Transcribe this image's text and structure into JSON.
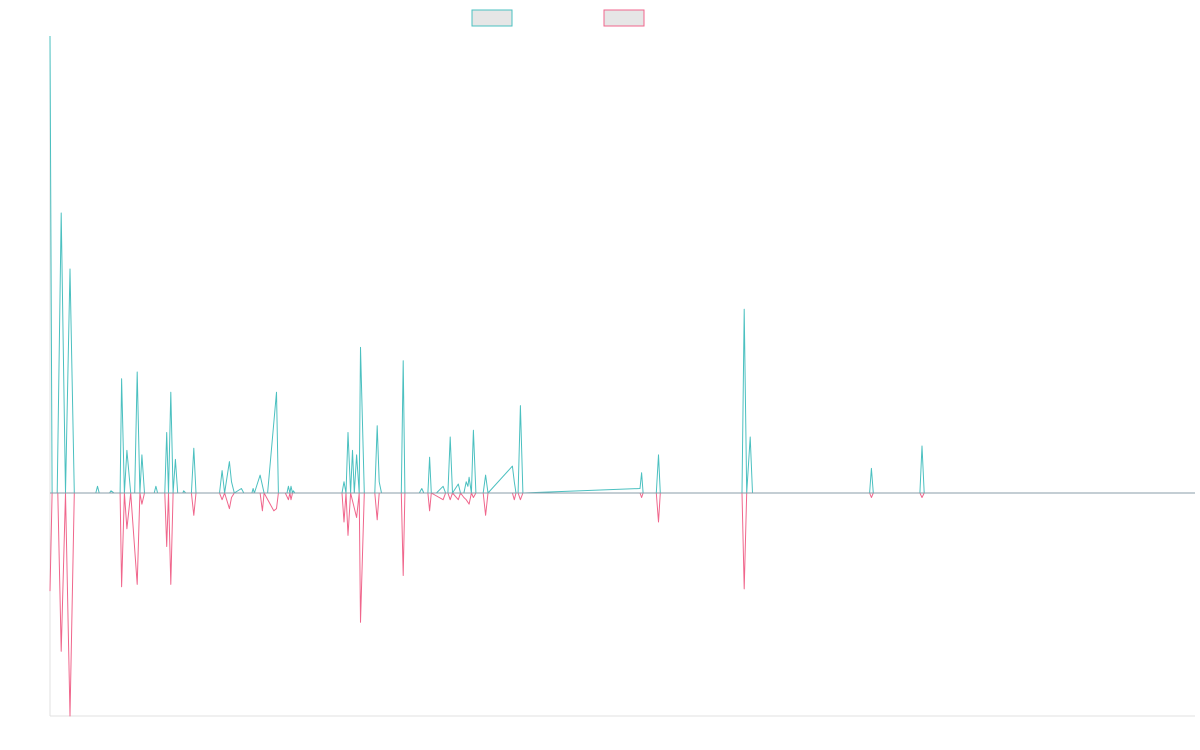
{
  "chart_data": {
    "type": "line",
    "title": "",
    "xlabel": "",
    "ylabel": "",
    "grid": false,
    "legend": "top-center",
    "x_range": [
      0,
      1
    ],
    "ylim": [
      -1,
      2.04
    ],
    "series": [
      {
        "color": "#4bc0c0",
        "points": [
          [
            0,
            2.04
          ],
          [
            0.0018,
            0
          ],
          [
            0.0063,
            0
          ],
          [
            0.0098,
            1.25
          ],
          [
            0.0135,
            0
          ],
          [
            0.0175,
            1.0
          ],
          [
            0.0212,
            0
          ],
          [
            0.04,
            0
          ],
          [
            0.0415,
            0.03
          ],
          [
            0.043,
            0
          ],
          [
            0.052,
            0
          ],
          [
            0.0533,
            0.01
          ],
          [
            0.056,
            0
          ],
          [
            0.0612,
            0
          ],
          [
            0.0625,
            0.51
          ],
          [
            0.065,
            0
          ],
          [
            0.0672,
            0.19
          ],
          [
            0.0705,
            0
          ],
          [
            0.074,
            0
          ],
          [
            0.0762,
            0.54
          ],
          [
            0.0785,
            0
          ],
          [
            0.0803,
            0.17
          ],
          [
            0.0825,
            0
          ],
          [
            0.091,
            0
          ],
          [
            0.0925,
            0.03
          ],
          [
            0.094,
            0
          ],
          [
            0.1003,
            0
          ],
          [
            0.1019,
            0.27
          ],
          [
            0.1035,
            0
          ],
          [
            0.1055,
            0.45
          ],
          [
            0.1075,
            0
          ],
          [
            0.1095,
            0.15
          ],
          [
            0.1115,
            0
          ],
          [
            0.116,
            0
          ],
          [
            0.1168,
            0.01
          ],
          [
            0.1185,
            0
          ],
          [
            0.1235,
            0
          ],
          [
            0.1256,
            0.2
          ],
          [
            0.1275,
            0
          ],
          [
            0.148,
            0
          ],
          [
            0.1503,
            0.1
          ],
          [
            0.1525,
            0
          ],
          [
            0.1567,
            0.14
          ],
          [
            0.1585,
            0.05
          ],
          [
            0.161,
            0
          ],
          [
            0.1672,
            0.02
          ],
          [
            0.1693,
            0
          ],
          [
            0.1763,
            0
          ],
          [
            0.1774,
            0.02
          ],
          [
            0.1785,
            0
          ],
          [
            0.1835,
            0.08
          ],
          [
            0.187,
            0
          ],
          [
            0.19,
            0
          ],
          [
            0.1978,
            0.45
          ],
          [
            0.1995,
            0
          ],
          [
            0.207,
            0
          ],
          [
            0.2082,
            0.03
          ],
          [
            0.2095,
            0
          ],
          [
            0.2105,
            0.03
          ],
          [
            0.2118,
            0
          ],
          [
            0.2125,
            0.01
          ],
          [
            0.214,
            0
          ],
          [
            0.255,
            0
          ],
          [
            0.2568,
            0.05
          ],
          [
            0.2585,
            0
          ],
          [
            0.2603,
            0.27
          ],
          [
            0.2625,
            0
          ],
          [
            0.2642,
            0.19
          ],
          [
            0.2658,
            0
          ],
          [
            0.2678,
            0.17
          ],
          [
            0.27,
            0
          ],
          [
            0.2712,
            0.65
          ],
          [
            0.2745,
            0
          ],
          [
            0.2837,
            0
          ],
          [
            0.2858,
            0.3
          ],
          [
            0.2875,
            0.05
          ],
          [
            0.2895,
            0
          ],
          [
            0.3,
            0
          ],
          [
            0.302,
            0
          ],
          [
            0.3068,
            0
          ],
          [
            0.3085,
            0.59
          ],
          [
            0.31,
            0
          ],
          [
            0.318,
            0
          ],
          [
            0.32,
            0
          ],
          [
            0.3225,
            0
          ],
          [
            0.3247,
            0.02
          ],
          [
            0.3265,
            0
          ],
          [
            0.33,
            0
          ],
          [
            0.3315,
            0.16
          ],
          [
            0.333,
            0
          ],
          [
            0.3355,
            0
          ],
          [
            0.3375,
            0
          ],
          [
            0.3433,
            0.03
          ],
          [
            0.3455,
            0
          ],
          [
            0.3475,
            0
          ],
          [
            0.3495,
            0.25
          ],
          [
            0.3515,
            0
          ],
          [
            0.3566,
            0.04
          ],
          [
            0.3585,
            0
          ],
          [
            0.3615,
            0
          ],
          [
            0.3635,
            0.05
          ],
          [
            0.365,
            0.03
          ],
          [
            0.366,
            0.07
          ],
          [
            0.368,
            0
          ],
          [
            0.3698,
            0.28
          ],
          [
            0.372,
            0
          ],
          [
            0.3783,
            0
          ],
          [
            0.3804,
            0.08
          ],
          [
            0.3825,
            0
          ],
          [
            0.4038,
            0.12
          ],
          [
            0.4055,
            0.05
          ],
          [
            0.407,
            0
          ],
          [
            0.4088,
            0
          ],
          [
            0.4108,
            0.39
          ],
          [
            0.413,
            0
          ],
          [
            0.5153,
            0.02
          ],
          [
            0.5167,
            0.09
          ],
          [
            0.518,
            0
          ],
          [
            0.5295,
            0
          ],
          [
            0.5314,
            0.17
          ],
          [
            0.533,
            0
          ],
          [
            0.5525,
            0
          ],
          [
            0.5545,
            0
          ],
          [
            0.6044,
            0
          ],
          [
            0.6063,
            0.82
          ],
          [
            0.6085,
            0
          ],
          [
            0.6115,
            0.25
          ],
          [
            0.6135,
            0
          ],
          [
            0.7158,
            0
          ],
          [
            0.7174,
            0.11
          ],
          [
            0.719,
            0
          ],
          [
            0.7597,
            0
          ],
          [
            0.7616,
            0.21
          ],
          [
            0.7635,
            0
          ],
          [
            1,
            0
          ]
        ]
      },
      {
        "color": "#f0668c",
        "points": [
          [
            0,
            -0.44
          ],
          [
            0.0018,
            0
          ],
          [
            0.0068,
            0
          ],
          [
            0.0098,
            -0.71
          ],
          [
            0.0135,
            0
          ],
          [
            0.0175,
            -1.0
          ],
          [
            0.0212,
            0
          ],
          [
            0.0612,
            0
          ],
          [
            0.0625,
            -0.42
          ],
          [
            0.065,
            0
          ],
          [
            0.0672,
            -0.16
          ],
          [
            0.0705,
            0
          ],
          [
            0.0762,
            -0.41
          ],
          [
            0.0785,
            0
          ],
          [
            0.0803,
            -0.05
          ],
          [
            0.0825,
            0
          ],
          [
            0.1003,
            0
          ],
          [
            0.1019,
            -0.24
          ],
          [
            0.1035,
            0
          ],
          [
            0.1055,
            -0.41
          ],
          [
            0.1075,
            0
          ],
          [
            0.1235,
            0
          ],
          [
            0.1256,
            -0.1
          ],
          [
            0.1275,
            0
          ],
          [
            0.148,
            0
          ],
          [
            0.1503,
            -0.03
          ],
          [
            0.1525,
            0
          ],
          [
            0.1567,
            -0.07
          ],
          [
            0.1585,
            -0.02
          ],
          [
            0.161,
            0
          ],
          [
            0.1835,
            0
          ],
          [
            0.1855,
            -0.08
          ],
          [
            0.187,
            0
          ],
          [
            0.1955,
            -0.08
          ],
          [
            0.1978,
            -0.07
          ],
          [
            0.1995,
            0
          ],
          [
            0.2055,
            0
          ],
          [
            0.2082,
            -0.03
          ],
          [
            0.2095,
            0
          ],
          [
            0.2105,
            -0.03
          ],
          [
            0.2118,
            0
          ],
          [
            0.255,
            0
          ],
          [
            0.2568,
            -0.13
          ],
          [
            0.2585,
            0
          ],
          [
            0.2603,
            -0.19
          ],
          [
            0.2625,
            0
          ],
          [
            0.2678,
            -0.11
          ],
          [
            0.27,
            0
          ],
          [
            0.2712,
            -0.58
          ],
          [
            0.2745,
            0
          ],
          [
            0.2837,
            0
          ],
          [
            0.2858,
            -0.12
          ],
          [
            0.2875,
            0
          ],
          [
            0.3068,
            0
          ],
          [
            0.3085,
            -0.37
          ],
          [
            0.31,
            0
          ],
          [
            0.33,
            0
          ],
          [
            0.3315,
            -0.08
          ],
          [
            0.333,
            0
          ],
          [
            0.3433,
            -0.03
          ],
          [
            0.3455,
            0
          ],
          [
            0.3475,
            0
          ],
          [
            0.3495,
            -0.03
          ],
          [
            0.3515,
            0
          ],
          [
            0.3566,
            -0.03
          ],
          [
            0.3585,
            0
          ],
          [
            0.3615,
            -0.02
          ],
          [
            0.3635,
            -0.03
          ],
          [
            0.366,
            -0.05
          ],
          [
            0.368,
            0
          ],
          [
            0.3698,
            -0.02
          ],
          [
            0.372,
            0
          ],
          [
            0.3783,
            0
          ],
          [
            0.3804,
            -0.1
          ],
          [
            0.3825,
            0
          ],
          [
            0.4038,
            0
          ],
          [
            0.4055,
            -0.03
          ],
          [
            0.407,
            0
          ],
          [
            0.4088,
            0
          ],
          [
            0.4108,
            -0.03
          ],
          [
            0.413,
            0
          ],
          [
            0.5153,
            0
          ],
          [
            0.5167,
            -0.02
          ],
          [
            0.518,
            0
          ],
          [
            0.5295,
            0
          ],
          [
            0.5314,
            -0.13
          ],
          [
            0.533,
            0
          ],
          [
            0.6044,
            0
          ],
          [
            0.6063,
            -0.43
          ],
          [
            0.6085,
            0
          ],
          [
            0.7158,
            0
          ],
          [
            0.7174,
            -0.02
          ],
          [
            0.719,
            0
          ],
          [
            0.7597,
            0
          ],
          [
            0.7616,
            -0.02
          ],
          [
            0.7635,
            0
          ],
          [
            1,
            0
          ]
        ]
      }
    ]
  }
}
